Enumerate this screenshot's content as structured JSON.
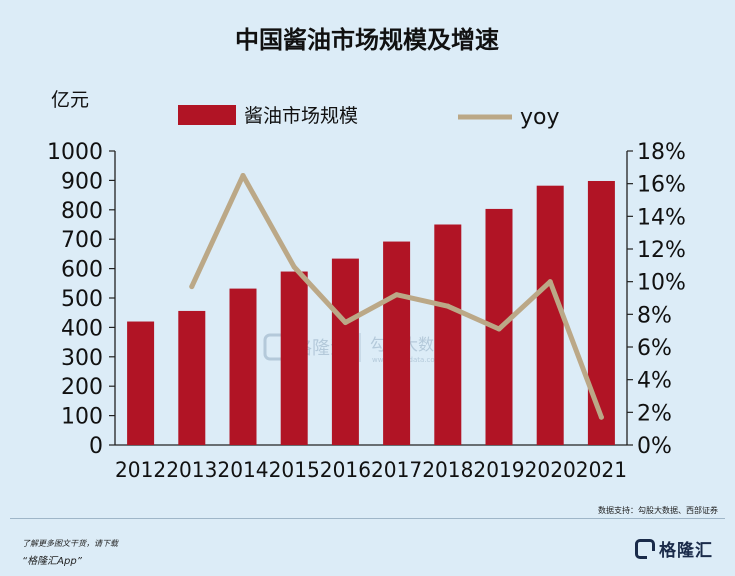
{
  "chart_data": {
    "type": "bar",
    "title": "中国酱油市场规模及增速",
    "ylabel_left": "亿元",
    "categories": [
      "2012",
      "2013",
      "2014",
      "2015",
      "2016",
      "2017",
      "2018",
      "2019",
      "2020",
      "2021"
    ],
    "series": [
      {
        "name": "酱油市场规模",
        "type": "bar",
        "axis": "left",
        "color": "#b11425",
        "values": [
          420,
          456,
          532,
          590,
          634,
          692,
          750,
          803,
          882,
          898
        ]
      },
      {
        "name": "yoy",
        "type": "line",
        "axis": "right",
        "color": "#bba887",
        "values": [
          null,
          0.097,
          0.165,
          0.109,
          0.075,
          0.092,
          0.085,
          0.071,
          0.1,
          0.017
        ]
      }
    ],
    "y_left": {
      "min": 0,
      "max": 1000,
      "ticks": [
        0,
        100,
        200,
        300,
        400,
        500,
        600,
        700,
        800,
        900,
        1000
      ]
    },
    "y_right": {
      "min": 0,
      "max": 0.18,
      "ticks": [
        "0%",
        "2%",
        "4%",
        "6%",
        "8%",
        "10%",
        "12%",
        "14%",
        "16%",
        "18%"
      ]
    },
    "legend_position": "top",
    "grid": false
  },
  "source": "数据支持：勾股大数据、西部证券",
  "watermark": {
    "brand": "格隆汇",
    "brand2": "勾股大数据",
    "url": "www.gugudata.com"
  },
  "footer": {
    "promo_line1": "了解更多图文干货，请下载",
    "promo_line2": "“格隆汇App”",
    "brand": "格隆汇"
  }
}
